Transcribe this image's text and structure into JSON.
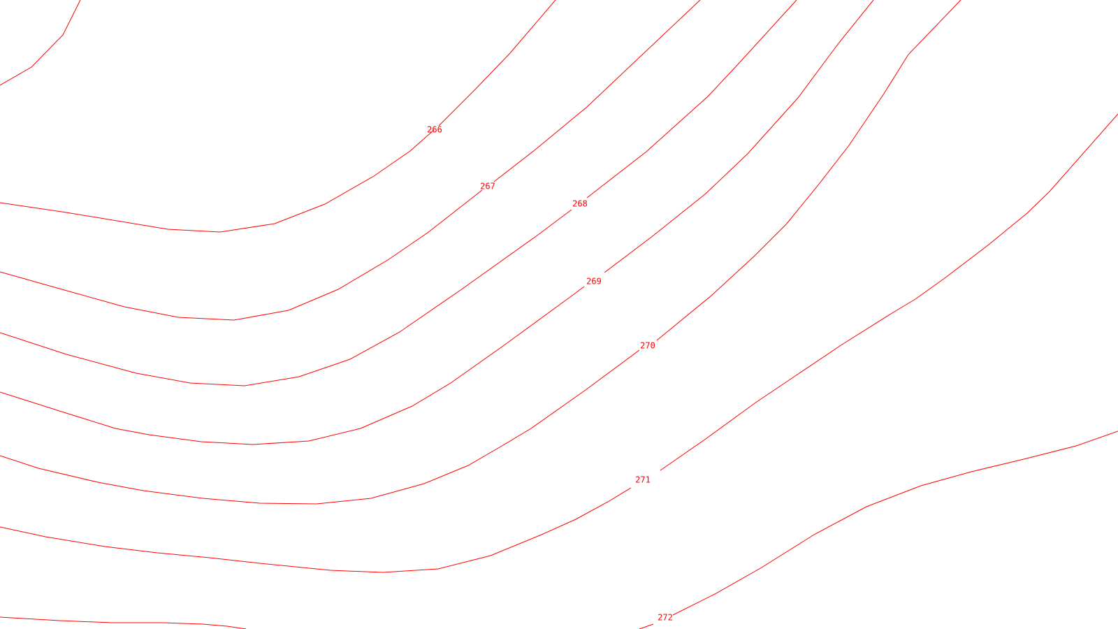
{
  "map": {
    "background_color": "#ffffff",
    "line_color": "#ff0000",
    "label_color": "#ff0000",
    "contour_labels": [
      "266",
      "267",
      "268",
      "269",
      "270",
      "271",
      "272"
    ]
  }
}
